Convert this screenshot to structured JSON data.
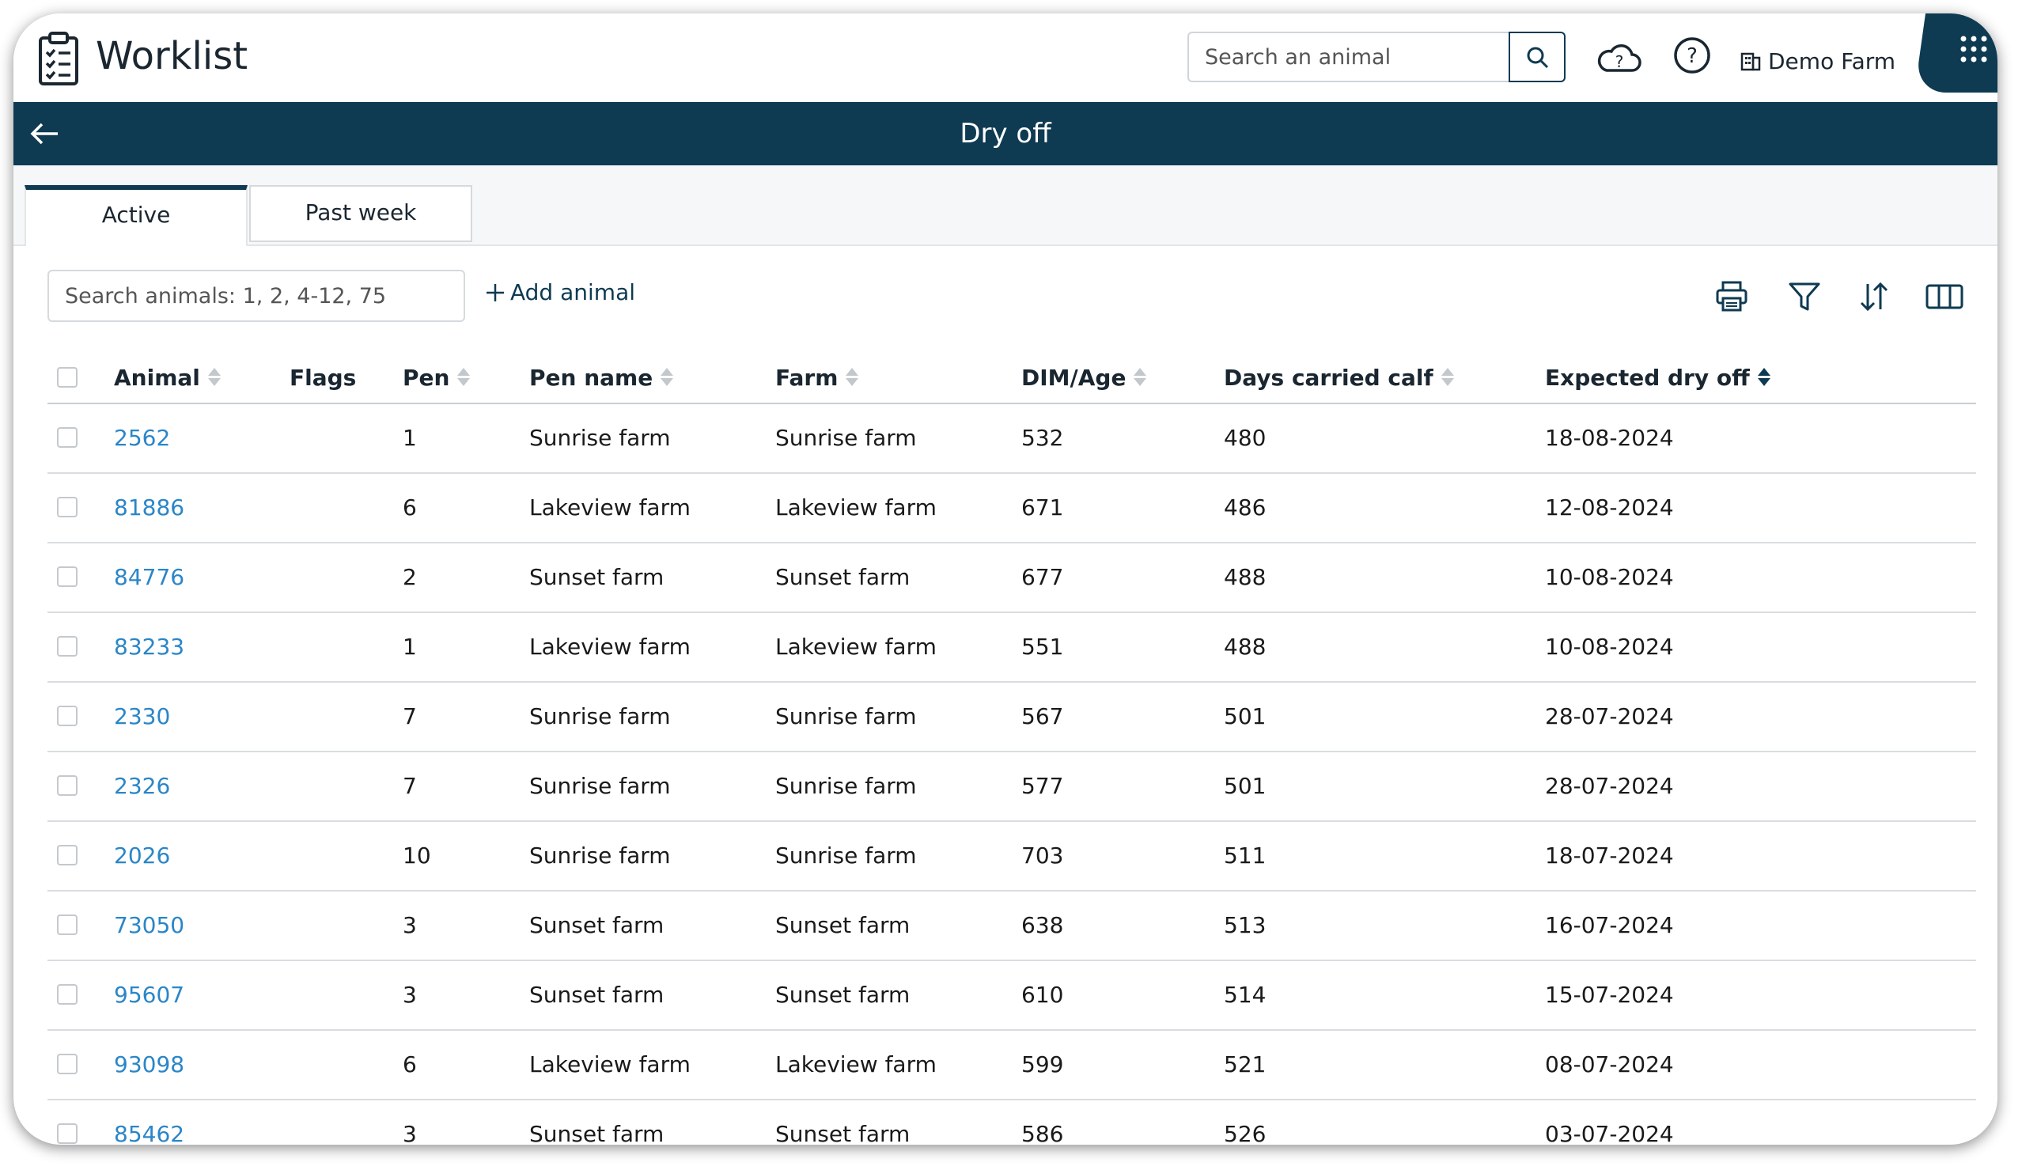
{
  "header": {
    "app_title": "Worklist",
    "search_placeholder": "Search an animal",
    "farm_name": "Demo Farm"
  },
  "titlebar": {
    "title": "Dry off"
  },
  "tabs": [
    {
      "label": "Active",
      "active": true
    },
    {
      "label": "Past week",
      "active": false
    }
  ],
  "toolbar": {
    "search_placeholder": "Search animals: 1, 2, 4-12, 75",
    "add_label": "Add animal",
    "icons": [
      "print-icon",
      "filter-icon",
      "sort-icon",
      "columns-icon"
    ]
  },
  "table": {
    "columns": [
      "Animal",
      "Flags",
      "Pen",
      "Pen name",
      "Farm",
      "DIM/Age",
      "Days carried calf",
      "Expected dry off"
    ],
    "sorted_by": "Expected dry off",
    "rows": [
      [
        "2562",
        "",
        "1",
        "Sunrise farm",
        "Sunrise farm",
        "532",
        "480",
        "18-08-2024"
      ],
      [
        "81886",
        "",
        "6",
        "Lakeview farm",
        "Lakeview farm",
        "671",
        "486",
        "12-08-2024"
      ],
      [
        "84776",
        "",
        "2",
        "Sunset farm",
        "Sunset farm",
        "677",
        "488",
        "10-08-2024"
      ],
      [
        "83233",
        "",
        "1",
        "Lakeview farm",
        "Lakeview farm",
        "551",
        "488",
        "10-08-2024"
      ],
      [
        "2330",
        "",
        "7",
        "Sunrise farm",
        "Sunrise farm",
        "567",
        "501",
        "28-07-2024"
      ],
      [
        "2326",
        "",
        "7",
        "Sunrise farm",
        "Sunrise farm",
        "577",
        "501",
        "28-07-2024"
      ],
      [
        "2026",
        "",
        "10",
        "Sunrise farm",
        "Sunrise farm",
        "703",
        "511",
        "18-07-2024"
      ],
      [
        "73050",
        "",
        "3",
        "Sunset farm",
        "Sunset farm",
        "638",
        "513",
        "16-07-2024"
      ],
      [
        "95607",
        "",
        "3",
        "Sunset farm",
        "Sunset farm",
        "610",
        "514",
        "15-07-2024"
      ],
      [
        "93098",
        "",
        "6",
        "Lakeview farm",
        "Lakeview farm",
        "599",
        "521",
        "08-07-2024"
      ],
      [
        "85462",
        "",
        "3",
        "Sunset farm",
        "Sunset farm",
        "586",
        "526",
        "03-07-2024"
      ]
    ]
  },
  "colors": {
    "primary": "#0e3a52",
    "link": "#2a86c8"
  }
}
